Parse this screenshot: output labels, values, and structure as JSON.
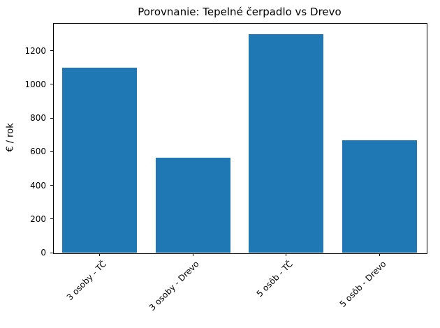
{
  "chart_data": {
    "type": "bar",
    "title": "Porovnanie: Tepelné čerpadlo vs Drevo",
    "ylabel": "€ / rok",
    "xlabel": "",
    "categories": [
      "3 osoby - TČ",
      "3 osoby - Drevo",
      "5 osôb - TČ",
      "5 osôb - Drevo"
    ],
    "values": [
      1100,
      565,
      1300,
      670
    ],
    "yticks": [
      0,
      200,
      400,
      600,
      800,
      1000,
      1200
    ],
    "ylim": [
      0,
      1365
    ],
    "bar_color": "#1f77b4",
    "grid": false,
    "legend": "none",
    "x_tick_rotation_deg": 45
  }
}
